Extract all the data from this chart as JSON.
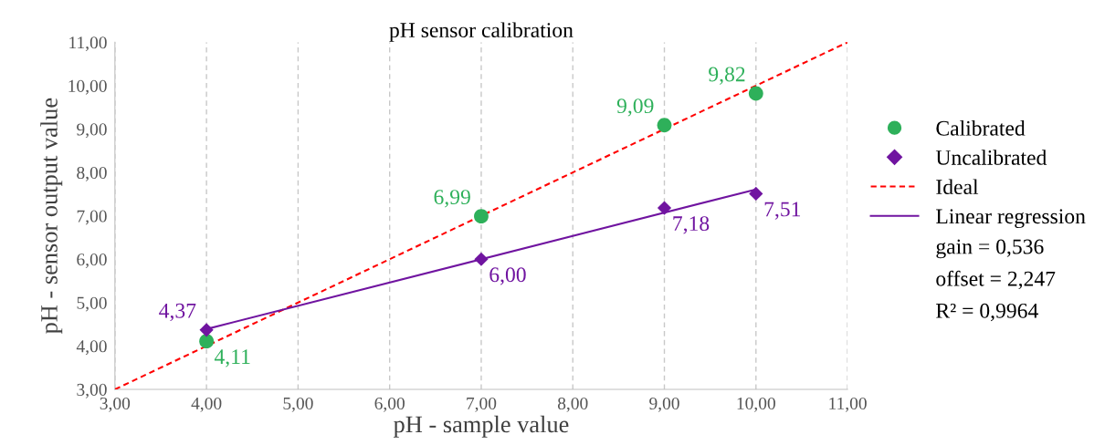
{
  "chart_data": {
    "type": "scatter",
    "title": "pH sensor calibration",
    "xlabel": "pH - sample value",
    "ylabel": "pH - sensor output value",
    "xlim": [
      3,
      11
    ],
    "ylim": [
      3,
      11
    ],
    "xticks": [
      {
        "value": 3,
        "label": "3,00"
      },
      {
        "value": 4,
        "label": "4,00"
      },
      {
        "value": 5,
        "label": "5,00"
      },
      {
        "value": 6,
        "label": "6,00"
      },
      {
        "value": 7,
        "label": "7,00"
      },
      {
        "value": 8,
        "label": "8,00"
      },
      {
        "value": 9,
        "label": "9,00"
      },
      {
        "value": 10,
        "label": "10,00"
      },
      {
        "value": 11,
        "label": "11,00"
      }
    ],
    "yticks": [
      {
        "value": 3,
        "label": "3,00"
      },
      {
        "value": 4,
        "label": "4,00"
      },
      {
        "value": 5,
        "label": "5,00"
      },
      {
        "value": 6,
        "label": "6,00"
      },
      {
        "value": 7,
        "label": "7,00"
      },
      {
        "value": 8,
        "label": "8,00"
      },
      {
        "value": 9,
        "label": "9,00"
      },
      {
        "value": 10,
        "label": "10,00"
      },
      {
        "value": 11,
        "label": "11,00"
      }
    ],
    "grid": "x",
    "legend": "right",
    "series": [
      {
        "name": "Calibrated",
        "marker": "circle",
        "color": "#2eb05a",
        "x": [
          4,
          7,
          9,
          10
        ],
        "values": [
          4.11,
          6.99,
          9.09,
          9.82
        ],
        "value_labels": [
          "4,11",
          "6,99",
          "9,09",
          "9,82"
        ]
      },
      {
        "name": "Uncalibrated",
        "marker": "diamond",
        "color": "#7014a0",
        "x": [
          4,
          7,
          9,
          10
        ],
        "values": [
          4.37,
          6.0,
          7.18,
          7.51
        ],
        "value_labels": [
          "4,37",
          "6,00",
          "7,18",
          "7,51"
        ]
      },
      {
        "name": "Ideal",
        "type": "line",
        "line_style": "dashed",
        "color": "#ff0000",
        "x": [
          3,
          11
        ],
        "values": [
          3,
          11
        ]
      },
      {
        "name": "Linear regression",
        "type": "line",
        "line_style": "solid",
        "color": "#7014a0",
        "x": [
          4,
          10
        ],
        "values": [
          4.39,
          7.61
        ]
      }
    ],
    "annotations": [
      "gain = 0,536",
      "offset = 2,247",
      "R² = 0,9964"
    ]
  }
}
